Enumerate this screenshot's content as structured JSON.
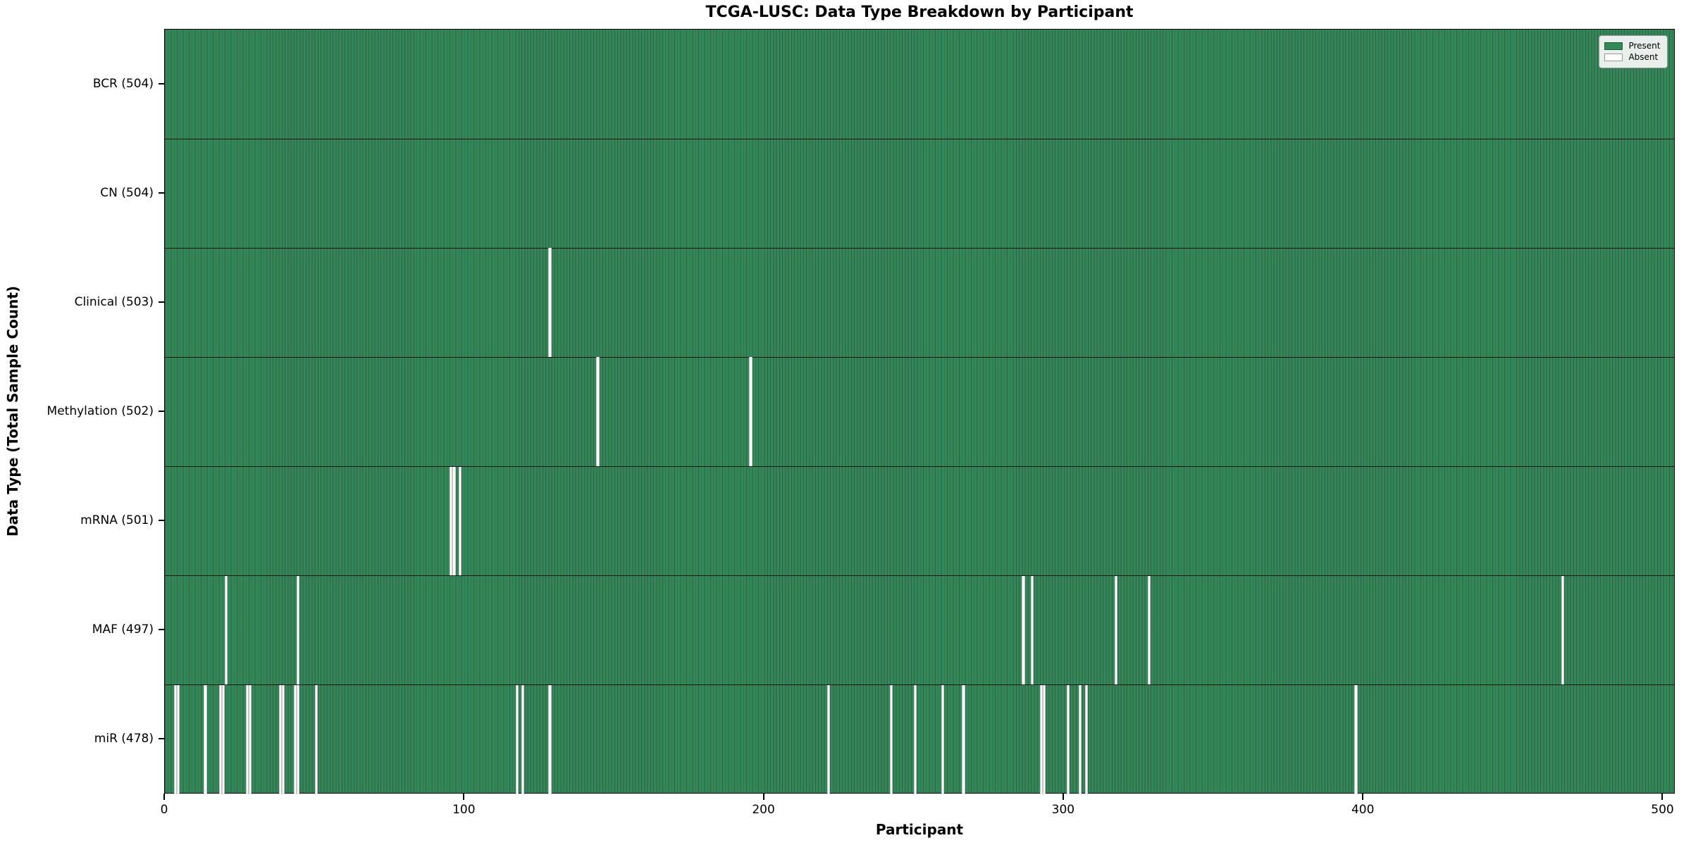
{
  "figure": {
    "title": "TCGA-LUSC: Data Type Breakdown by Participant",
    "x_axis": {
      "label": "Participant",
      "tick_values": [
        0,
        100,
        200,
        300,
        400,
        500
      ]
    },
    "y_axis": {
      "label": "Data Type (Total Sample Count)"
    },
    "legend": {
      "items": [
        {
          "label": "Present",
          "color": "#2e8b57",
          "border": "#1e5c3b"
        },
        {
          "label": "Absent",
          "color": "#ffffff",
          "border": "#9a9a9a"
        }
      ]
    }
  },
  "colors": {
    "present": "#2e8b57",
    "absent": "#ffffff",
    "bar_edge": "rgba(12,38,26,0.78)",
    "row_separator": "#000000",
    "plot_border": "#000000",
    "legend_background": "#f8f8f8",
    "legend_border": "#9a9a9a"
  },
  "chart_data": {
    "type": "heatmap",
    "title": "TCGA-LUSC: Data Type Breakdown by Participant",
    "xlabel": "Participant",
    "ylabel": "Data Type (Total Sample Count)",
    "x_range": [
      0,
      504
    ],
    "n_participants": 504,
    "x_ticks": [
      0,
      100,
      200,
      300,
      400,
      500
    ],
    "grid": false,
    "legend_position": "upper right",
    "legend_entries": [
      "Present",
      "Absent"
    ],
    "rows": [
      {
        "name": "BCR",
        "label": "BCR (504)",
        "present_count": 504,
        "absent_participants": []
      },
      {
        "name": "CN",
        "label": "CN (504)",
        "present_count": 504,
        "absent_participants": []
      },
      {
        "name": "Clinical",
        "label": "Clinical (503)",
        "present_count": 503,
        "absent_participants": [
          128
        ]
      },
      {
        "name": "Methylation",
        "label": "Methylation (502)",
        "present_count": 502,
        "absent_participants": [
          144,
          195
        ]
      },
      {
        "name": "mRNA",
        "label": "mRNA (501)",
        "present_count": 501,
        "absent_participants": [
          95,
          96,
          98
        ]
      },
      {
        "name": "MAF",
        "label": "MAF (497)",
        "present_count": 497,
        "absent_participants": [
          20,
          44,
          286,
          289,
          317,
          328,
          466
        ]
      },
      {
        "name": "miR",
        "label": "miR (478)",
        "present_count": 478,
        "absent_participants": [
          3,
          4,
          13,
          18,
          19,
          27,
          28,
          38,
          39,
          43,
          44,
          50,
          117,
          119,
          128,
          221,
          242,
          250,
          259,
          266,
          292,
          293,
          301,
          305,
          307,
          397
        ]
      }
    ]
  }
}
